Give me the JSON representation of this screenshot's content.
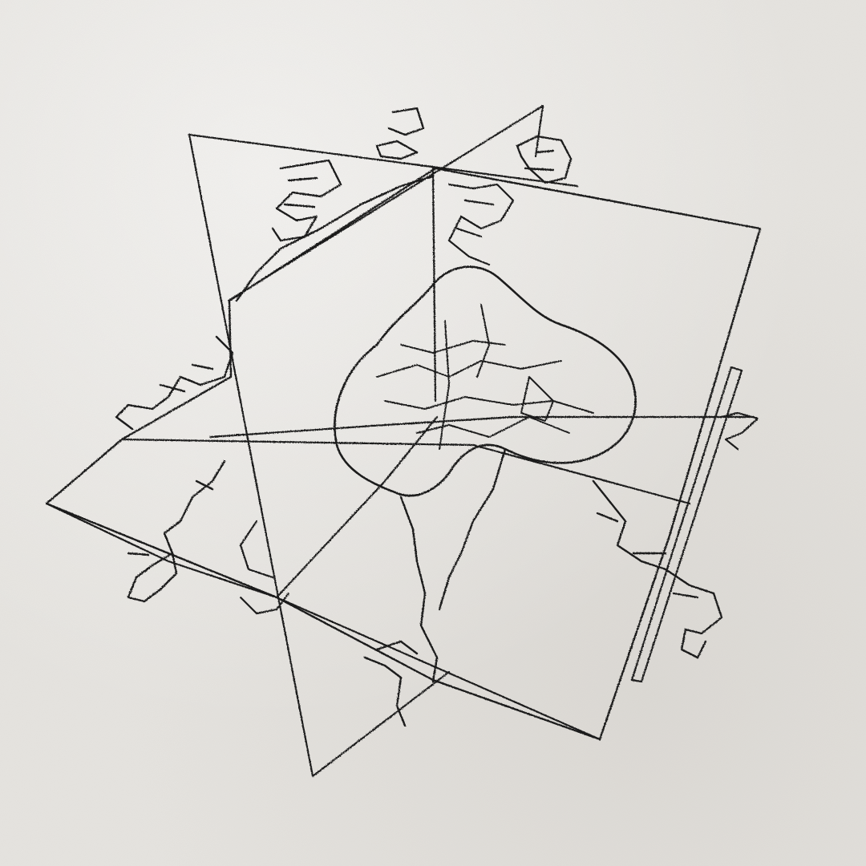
{
  "scene": {
    "subject": "embroidered-line-art",
    "background_color": "#e7e5e1",
    "thread_color": "#1a1a1a"
  }
}
